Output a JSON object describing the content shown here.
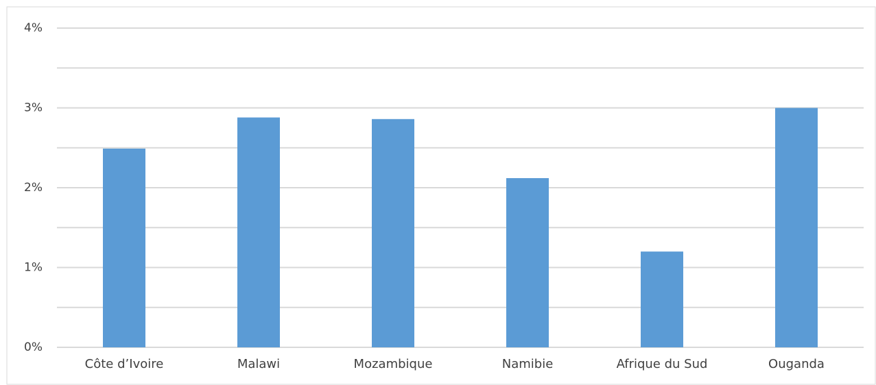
{
  "chart_data": {
    "type": "bar",
    "categories": [
      "Côte d’Ivoire",
      "Malawi",
      "Mozambique",
      "Namibie",
      "Afrique du Sud",
      "Ouganda"
    ],
    "values": [
      2.49,
      2.88,
      2.86,
      2.12,
      1.2,
      3.0
    ],
    "color": "#5b9bd5",
    "ylim": [
      0,
      4
    ],
    "yticks": [
      {
        "value": 0,
        "label": "0%"
      },
      {
        "value": 1,
        "label": "1%"
      },
      {
        "value": 2,
        "label": "2%"
      },
      {
        "value": 3,
        "label": "3%"
      },
      {
        "value": 4,
        "label": "4%"
      }
    ],
    "minor_yticks": [
      0.5,
      1.5,
      2.5,
      3.5
    ],
    "grid": true
  }
}
